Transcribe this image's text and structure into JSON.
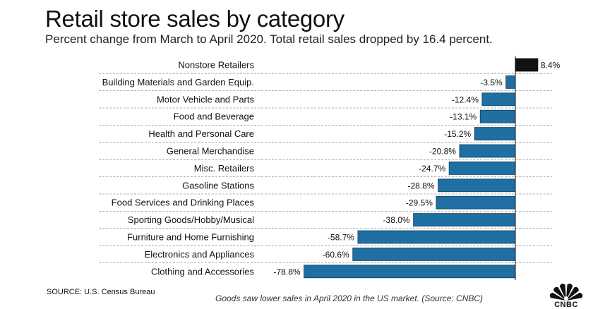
{
  "chart_data": {
    "type": "bar",
    "orientation": "horizontal",
    "title": "Retail store sales by category",
    "subtitle": "Percent change from March to April 2020. Total retail sales dropped by 16.4 percent.",
    "xlabel": "",
    "ylabel": "",
    "xlim": [
      -80,
      10
    ],
    "grid": "dashed row separators",
    "categories": [
      "Nonstore Retailers",
      "Building Materials and Garden Equip.",
      "Motor Vehicle and Parts",
      "Food and Beverage",
      "Health and Personal Care",
      "General Merchandise",
      "Misc. Retailers",
      "Gasoline Stations",
      "Food Services and Drinking Places",
      "Sporting Goods/Hobby/Musical",
      "Furniture and Home Furnishing",
      "Electronics and Appliances",
      "Clothing and Accessories"
    ],
    "values": [
      8.4,
      -3.5,
      -12.4,
      -13.1,
      -15.2,
      -20.8,
      -24.7,
      -28.8,
      -29.5,
      -38.0,
      -58.7,
      -60.6,
      -78.8
    ],
    "value_labels": [
      "8.4%",
      "-3.5%",
      "-12.4%",
      "-13.1%",
      "-15.2%",
      "-20.8%",
      "-24.7%",
      "-28.8%",
      "-29.5%",
      "-38.0%",
      "-58.7%",
      "-60.6%",
      "-78.8%"
    ],
    "colors": {
      "positive": "#111111",
      "negative": "#1f6fa3",
      "negative_stroke": "#0e3d5e",
      "grid": "#9a9a9a"
    }
  },
  "footer": {
    "source": "SOURCE: U.S. Census Bureau",
    "caption": "Goods saw lower sales in April 2020 in the US market. (Source: CNBC)",
    "logo_text": "CNBC"
  }
}
